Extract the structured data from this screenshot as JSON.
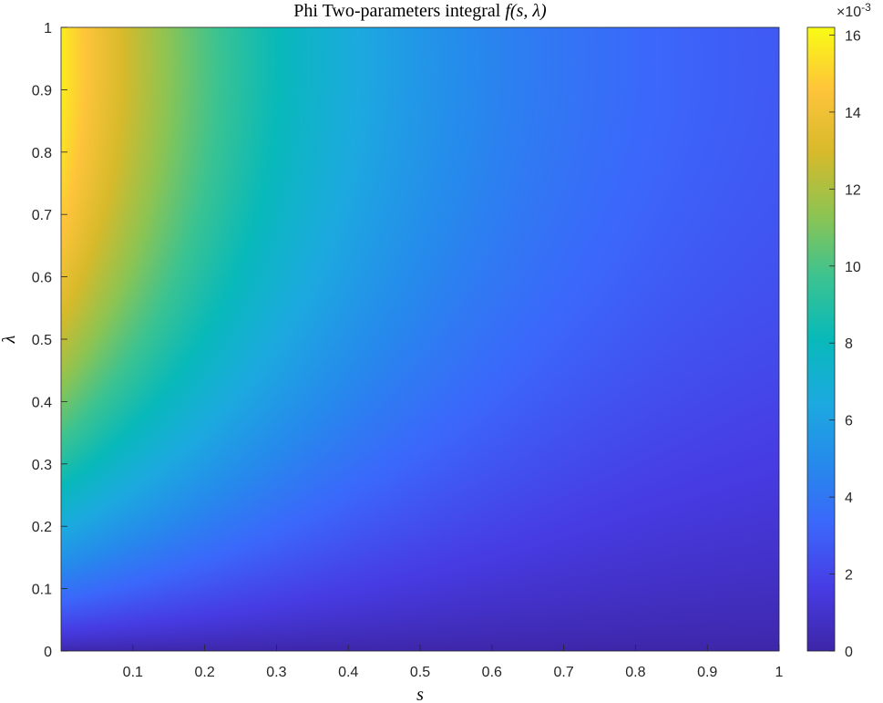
{
  "chart_data": {
    "type": "heatmap",
    "title_prefix": "Phi Two-parameters integral ",
    "title_math": "f(s, λ)",
    "xlabel": "s",
    "ylabel": "λ",
    "xlim": [
      0,
      1
    ],
    "ylim": [
      0,
      1
    ],
    "x_ticks": [
      0.1,
      0.2,
      0.3,
      0.4,
      0.5,
      0.6,
      0.7,
      0.8,
      0.9,
      1
    ],
    "x_tick_labels": [
      "0.1",
      "0.2",
      "0.3",
      "0.4",
      "0.5",
      "0.6",
      "0.7",
      "0.8",
      "0.9",
      "1"
    ],
    "y_ticks": [
      0,
      0.1,
      0.2,
      0.3,
      0.4,
      0.5,
      0.6,
      0.7,
      0.8,
      0.9,
      1
    ],
    "y_tick_labels": [
      "0",
      "0.1",
      "0.2",
      "0.3",
      "0.4",
      "0.5",
      "0.6",
      "0.7",
      "0.8",
      "0.9",
      "1"
    ],
    "colormap": "parula",
    "colorbar": {
      "clim": [
        0,
        16.2
      ],
      "ticks": [
        0,
        2,
        4,
        6,
        8,
        10,
        12,
        14,
        16
      ],
      "tick_labels": [
        "0",
        "2",
        "4",
        "6",
        "8",
        "10",
        "12",
        "14",
        "16"
      ],
      "exponent_base": "×10",
      "exponent_power": "-3"
    },
    "grid": false,
    "value_samples": [
      {
        "s": 0.0,
        "lambda": 1.0,
        "value": 16.2
      },
      {
        "s": 0.1,
        "lambda": 0.8,
        "value": 14.0
      },
      {
        "s": 0.2,
        "lambda": 0.6,
        "value": 11.0
      },
      {
        "s": 0.4,
        "lambda": 0.5,
        "value": 8.0
      },
      {
        "s": 0.5,
        "lambda": 0.9,
        "value": 7.0
      },
      {
        "s": 0.7,
        "lambda": 0.5,
        "value": 4.0
      },
      {
        "s": 1.0,
        "lambda": 1.0,
        "value": 1.5
      },
      {
        "s": 1.0,
        "lambda": 0.1,
        "value": 0.5
      },
      {
        "s": 0.0,
        "lambda": 0.0,
        "value": 0.5
      }
    ]
  }
}
